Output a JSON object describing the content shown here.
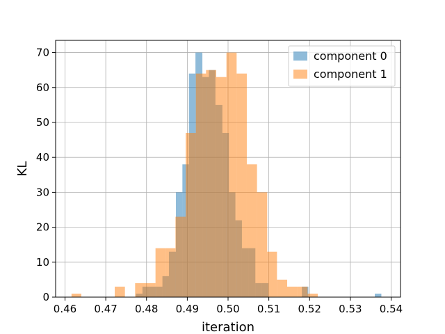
{
  "chart_data": {
    "type": "bar",
    "title": "",
    "xlabel": "iteration",
    "ylabel": "KL",
    "xlim": [
      0.4577,
      0.5423
    ],
    "ylim": [
      0,
      73.5
    ],
    "xticks": [
      "0.46",
      "0.47",
      "0.48",
      "0.49",
      "0.50",
      "0.51",
      "0.52",
      "0.53",
      "0.54"
    ],
    "xtick_values": [
      0.46,
      0.47,
      0.48,
      0.49,
      0.5,
      0.51,
      0.52,
      0.53,
      0.54
    ],
    "yticks": [
      "0",
      "10",
      "20",
      "30",
      "40",
      "50",
      "60",
      "70"
    ],
    "ytick_values": [
      0,
      10,
      20,
      30,
      40,
      50,
      60,
      70
    ],
    "grid": true,
    "legend_position": "top-right",
    "series": [
      {
        "name": "component 0",
        "color": "#1f77b4",
        "opacity": 0.5,
        "bin_edges": [
          0.4774,
          0.479,
          0.4806,
          0.4823,
          0.4839,
          0.4855,
          0.4872,
          0.4888,
          0.4904,
          0.492,
          0.4937,
          0.4953,
          0.4969,
          0.4986,
          0.5002,
          0.5018,
          0.5034,
          0.5051,
          0.5067,
          0.5083,
          0.5099,
          0.5116,
          0.5132,
          0.5148,
          0.5165,
          0.5181,
          0.5197,
          0.5213,
          0.523,
          0.5246,
          0.5262,
          0.5279,
          0.5295,
          0.5311,
          0.5327,
          0.5344,
          0.536,
          0.5376
        ],
        "counts": [
          1,
          3,
          3,
          3,
          6,
          13,
          30,
          38,
          64,
          70,
          63,
          65,
          55,
          47,
          30,
          22,
          14,
          14,
          4,
          4,
          0,
          0,
          0,
          0,
          0,
          3,
          0,
          0,
          0,
          0,
          0,
          0,
          0,
          0,
          0,
          0,
          1
        ]
      },
      {
        "name": "component 1",
        "color": "#ff7f0e",
        "opacity": 0.5,
        "bin_edges": [
          0.4616,
          0.464,
          0.4672,
          0.4697,
          0.4722,
          0.4747,
          0.4772,
          0.4797,
          0.4822,
          0.4846,
          0.4871,
          0.4896,
          0.4921,
          0.4946,
          0.4971,
          0.4996,
          0.5021,
          0.5046,
          0.5071,
          0.5096,
          0.512,
          0.5145,
          0.517,
          0.5195,
          0.522
        ],
        "counts": [
          1,
          0,
          0,
          0,
          3,
          0,
          4,
          4,
          14,
          14,
          23,
          47,
          64,
          65,
          63,
          70,
          64,
          38,
          30,
          13,
          5,
          3,
          3,
          1
        ]
      }
    ]
  }
}
